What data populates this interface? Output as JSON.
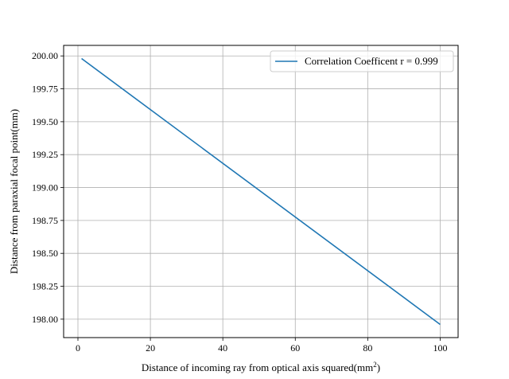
{
  "chart_data": {
    "type": "line",
    "title": "",
    "xlabel": "Distance of incoming ray from optical axis squared(mm",
    "xlabel_superscript": "2",
    "xlabel_suffix": ")",
    "ylabel": "Distance from paraxial focal point(mm)",
    "xlim": [
      -3.95,
      104.95
    ],
    "ylim": [
      197.86,
      200.08
    ],
    "xticks": [
      0,
      20,
      40,
      60,
      80,
      100
    ],
    "xtick_labels": [
      "0",
      "20",
      "40",
      "60",
      "80",
      "100"
    ],
    "yticks": [
      198.0,
      198.25,
      198.5,
      198.75,
      199.0,
      199.25,
      199.5,
      199.75,
      200.0
    ],
    "ytick_labels": [
      "198.00",
      "198.25",
      "198.50",
      "198.75",
      "199.00",
      "199.25",
      "199.50",
      "199.75",
      "200.00"
    ],
    "grid": true,
    "legend_position": "top-right",
    "series": [
      {
        "name": "Correlation Coefficent r = 0.999",
        "color": "#1f77b4",
        "x": [
          1,
          100
        ],
        "y": [
          199.98,
          197.96
        ]
      }
    ]
  }
}
